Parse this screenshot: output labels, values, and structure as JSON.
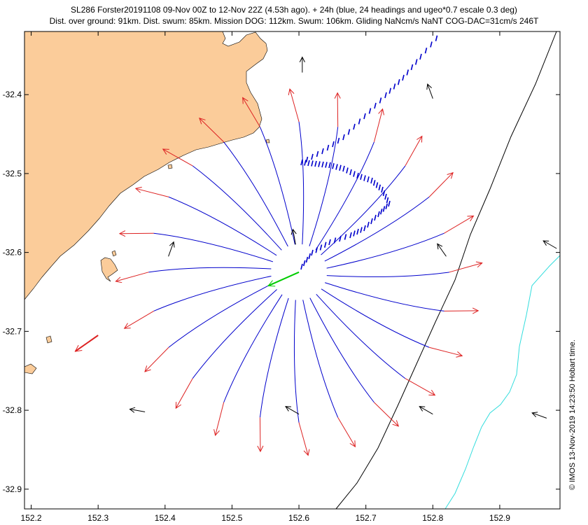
{
  "title": {
    "line1": "SL286 Forster20191108 09-Nov 00Z to 12-Nov 22Z (4.53h ago). + 24h (blue, 24 headings and ugeo*0.7 escale 0.3 deg)",
    "line2": "Dist. over ground: 91km. Dist. swum: 85km. Mission DOG: 112km. Swum: 106km. Gliding NaNcm/s NaNT COG-DAC=31cm/s 246T"
  },
  "credit": "© IMOS 13-Nov-2019 14:23:50 Hobart time.",
  "colors": {
    "land": "#fbcc9a",
    "predicted_track": "#0000cc",
    "heading_arrow": "#dd2222",
    "current_arrow": "#000000",
    "dac_arrow": "#00cc00",
    "isobath_black": "#000000",
    "isobath_cyan": "#33dddd"
  },
  "chart_data": {
    "type": "map",
    "xlim": [
      152.19,
      152.99
    ],
    "ylim": [
      -32.925,
      -32.32
    ],
    "x_ticks": [
      "152.2",
      "152.3",
      "152.4",
      "152.5",
      "152.6",
      "152.7",
      "152.8",
      "152.9"
    ],
    "y_ticks": [
      "-32.4",
      "-32.5",
      "-32.6",
      "-32.7",
      "-32.8",
      "-32.9"
    ],
    "glider_position": {
      "lon": 152.6,
      "lat": -32.625
    },
    "fan": {
      "headings": 24,
      "inner_radius_deg": 0.03,
      "outer_radius_deg": 0.24
    },
    "current_vectors": [
      {
        "lon": 152.605,
        "lat": -32.372,
        "dir_deg": 0
      },
      {
        "lon": 152.8,
        "lat": -32.405,
        "dir_deg": 340
      },
      {
        "lon": 152.595,
        "lat": -32.59,
        "dir_deg": 350
      },
      {
        "lon": 152.405,
        "lat": -32.605,
        "dir_deg": 20
      },
      {
        "lon": 152.82,
        "lat": -32.605,
        "dir_deg": 325
      },
      {
        "lon": 152.985,
        "lat": -32.595,
        "dir_deg": 300
      },
      {
        "lon": 152.37,
        "lat": -32.802,
        "dir_deg": 280
      },
      {
        "lon": 152.6,
        "lat": -32.805,
        "dir_deg": 300
      },
      {
        "lon": 152.8,
        "lat": -32.805,
        "dir_deg": 300
      },
      {
        "lon": 152.97,
        "lat": -32.81,
        "dir_deg": 290
      }
    ],
    "dac_arrow": {
      "lon": 152.6,
      "lat": -32.625,
      "dir_deg": 246
    },
    "red_heading_arrow": {
      "lon": 152.3,
      "lat": -32.705,
      "dir_deg": 235
    }
  }
}
